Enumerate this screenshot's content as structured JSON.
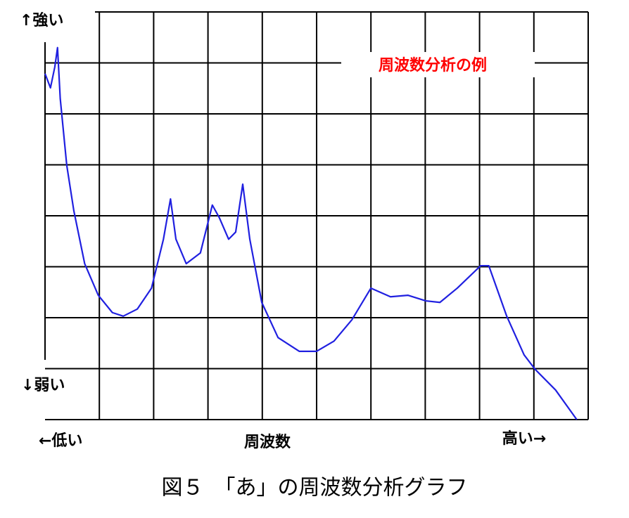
{
  "chart_data": {
    "type": "line",
    "title": "周波数分析の例",
    "caption": "図５　「あ」の周波数分析グラフ",
    "annotations": {
      "y_high": "↑強い",
      "y_low": "↓弱い",
      "x_low": "←低い",
      "x_label": "周波数",
      "x_high": "高い→"
    },
    "x": [
      0,
      0.1,
      0.18,
      0.23,
      0.28,
      0.4,
      0.53,
      0.73,
      0.98,
      1.24,
      1.44,
      1.7,
      1.96,
      2.18,
      2.31,
      2.41,
      2.6,
      2.86,
      3.08,
      3.21,
      3.38,
      3.51,
      3.64,
      3.77,
      3.99,
      4.29,
      4.68,
      5,
      5.32,
      5.65,
      6,
      6.36,
      6.68,
      7.01,
      7.27,
      7.59,
      8.02,
      8.17,
      8.5,
      8.82,
      9.02,
      9.4,
      9.79
    ],
    "values": [
      6.79,
      6.51,
      6.92,
      7.3,
      6.3,
      4.99,
      4.1,
      3.06,
      2.44,
      2.1,
      2.03,
      2.17,
      2.58,
      3.54,
      4.33,
      3.54,
      3.06,
      3.27,
      4.21,
      3.96,
      3.54,
      3.68,
      4.62,
      3.54,
      2.3,
      1.61,
      1.34,
      1.34,
      1.54,
      1.96,
      2.58,
      2.41,
      2.44,
      2.33,
      2.3,
      2.58,
      3.02,
      3.02,
      2.03,
      1.27,
      0.99,
      0.58,
      0
    ],
    "color": "#2020e0",
    "title_color": "#ff0000",
    "xlim": [
      0,
      10
    ],
    "ylim": [
      0,
      8
    ],
    "xticks": [
      1,
      2,
      3,
      4,
      5,
      6,
      7,
      8,
      9,
      10
    ],
    "yticks": [
      0,
      1,
      2,
      3,
      4,
      5,
      6,
      7,
      8
    ],
    "grid": true
  }
}
